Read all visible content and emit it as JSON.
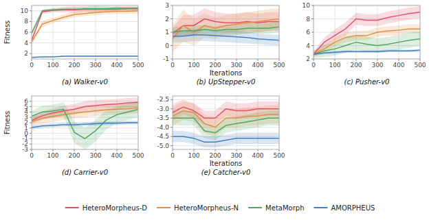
{
  "chart_data": [
    {
      "type": "line",
      "title": "(a) Walker-v0",
      "ylabel": "Fitness",
      "x": [
        0,
        50,
        100,
        150,
        200,
        250,
        300,
        350,
        400,
        450,
        500
      ],
      "xlim": [
        0,
        500
      ],
      "xticks": [
        0,
        100,
        200,
        300,
        400,
        500
      ],
      "ylim": [
        1,
        11
      ],
      "yticks": [
        2,
        4,
        6,
        8,
        10
      ],
      "grid": true,
      "legend": "bottom",
      "series": [
        {
          "name": "HeteroMorpheus-D",
          "color": "#e05070",
          "values": [
            4.5,
            9.8,
            10.1,
            10.2,
            10.2,
            10.3,
            10.3,
            10.3,
            10.3,
            10.4,
            10.4
          ],
          "std": [
            0.3,
            0.4,
            0.4,
            0.5,
            0.6,
            0.5,
            0.7,
            0.5,
            0.5,
            0.4,
            0.4
          ]
        },
        {
          "name": "HeteroMorpheus-N",
          "color": "#e09040",
          "values": [
            4.2,
            7.5,
            8.2,
            8.8,
            9.3,
            9.5,
            9.7,
            9.8,
            9.9,
            9.9,
            10.0
          ],
          "std": [
            0.4,
            0.6,
            0.5,
            0.5,
            0.5,
            0.5,
            0.5,
            0.5,
            0.5,
            0.5,
            0.5
          ]
        },
        {
          "name": "MetaMorph",
          "color": "#50a860",
          "values": [
            5.8,
            10.0,
            10.2,
            10.3,
            10.3,
            10.4,
            10.4,
            10.4,
            10.5,
            10.5,
            10.5
          ],
          "std": [
            0.5,
            0.3,
            0.3,
            0.3,
            0.3,
            0.3,
            0.3,
            0.3,
            0.3,
            0.3,
            0.3
          ]
        },
        {
          "name": "AMORPHEUS",
          "color": "#4080c0",
          "values": [
            1.3,
            1.4,
            1.4,
            1.5,
            1.5,
            1.5,
            1.5,
            1.5,
            1.5,
            1.5,
            1.5
          ],
          "std": [
            0.1,
            0.1,
            0.1,
            0.1,
            0.1,
            0.1,
            0.1,
            0.1,
            0.1,
            0.1,
            0.1
          ]
        }
      ]
    },
    {
      "type": "line",
      "title": "(b) UpStepper-v0",
      "xlabel": "Iterations",
      "x": [
        0,
        50,
        100,
        150,
        200,
        250,
        300,
        350,
        400,
        450,
        500
      ],
      "xlim": [
        0,
        500
      ],
      "xticks": [
        0,
        100,
        200,
        300,
        400,
        500
      ],
      "ylim": [
        -1,
        3
      ],
      "yticks": [
        -1,
        0,
        1,
        2,
        3
      ],
      "grid": true,
      "series": [
        {
          "name": "HeteroMorpheus-D",
          "color": "#e05070",
          "values": [
            0.9,
            1.5,
            1.5,
            2.0,
            1.8,
            1.7,
            1.7,
            1.8,
            1.7,
            1.8,
            1.8
          ],
          "std": [
            0.4,
            0.8,
            0.8,
            0.8,
            0.7,
            0.7,
            0.7,
            0.7,
            0.7,
            0.7,
            0.7
          ]
        },
        {
          "name": "HeteroMorpheus-N",
          "color": "#e09040",
          "values": [
            0.5,
            1.5,
            1.0,
            1.5,
            1.3,
            1.5,
            1.6,
            1.7,
            1.8,
            1.9,
            2.0
          ],
          "std": [
            1.0,
            1.2,
            1.0,
            0.9,
            0.8,
            0.8,
            0.8,
            0.8,
            0.8,
            0.8,
            0.8
          ]
        },
        {
          "name": "MetaMorph",
          "color": "#50a860",
          "values": [
            1.0,
            1.1,
            1.1,
            1.2,
            1.1,
            1.2,
            1.2,
            1.3,
            1.3,
            1.3,
            1.4
          ],
          "std": [
            0.35,
            0.35,
            0.35,
            0.35,
            0.35,
            0.35,
            0.35,
            0.4,
            0.4,
            0.4,
            0.4
          ]
        },
        {
          "name": "AMORPHEUS",
          "color": "#4080c0",
          "values": [
            0.7,
            0.7,
            0.8,
            0.8,
            0.75,
            0.7,
            0.65,
            0.6,
            0.5,
            0.45,
            0.4
          ],
          "std": [
            0.45,
            0.45,
            0.45,
            0.45,
            0.45,
            0.45,
            0.45,
            0.45,
            0.4,
            0.4,
            0.4
          ]
        }
      ]
    },
    {
      "type": "line",
      "title": "(c) Pusher-v0",
      "x": [
        0,
        50,
        100,
        150,
        200,
        250,
        300,
        350,
        400,
        450,
        500
      ],
      "xlim": [
        0,
        500
      ],
      "xticks": [
        0,
        100,
        200,
        300,
        400,
        500
      ],
      "ylim": [
        2,
        10
      ],
      "yticks": [
        2,
        4,
        6,
        8,
        10
      ],
      "grid": true,
      "series": [
        {
          "name": "HeteroMorpheus-D",
          "color": "#e05070",
          "values": [
            2.7,
            4.5,
            5.5,
            6.5,
            8.0,
            7.8,
            7.8,
            8.2,
            8.5,
            8.8,
            9.0
          ],
          "std": [
            0.4,
            0.7,
            0.9,
            1.0,
            0.9,
            0.9,
            0.9,
            0.9,
            0.9,
            0.9,
            0.9
          ]
        },
        {
          "name": "HeteroMorpheus-N",
          "color": "#e09040",
          "values": [
            2.7,
            3.5,
            4.5,
            5.2,
            5.5,
            5.5,
            6.0,
            6.2,
            6.3,
            6.5,
            6.5
          ],
          "std": [
            0.4,
            0.6,
            0.7,
            0.7,
            0.7,
            0.7,
            0.7,
            0.7,
            0.7,
            0.7,
            0.7
          ]
        },
        {
          "name": "MetaMorph",
          "color": "#50a860",
          "values": [
            2.7,
            3.2,
            3.5,
            4.0,
            4.5,
            4.2,
            4.0,
            4.2,
            4.5,
            4.8,
            5.0
          ],
          "std": [
            0.6,
            0.9,
            1.0,
            1.1,
            1.1,
            1.1,
            1.1,
            1.1,
            1.1,
            1.1,
            1.1
          ]
        },
        {
          "name": "AMORPHEUS",
          "color": "#4080c0",
          "values": [
            2.7,
            2.9,
            3.0,
            3.1,
            3.1,
            3.1,
            3.1,
            3.2,
            3.2,
            3.2,
            3.3
          ],
          "std": [
            0.2,
            0.2,
            0.2,
            0.2,
            0.2,
            0.2,
            0.2,
            0.2,
            0.2,
            0.2,
            0.2
          ]
        }
      ]
    },
    {
      "type": "line",
      "title": "(d) Carrier-v0",
      "ylabel": "Fitness",
      "x": [
        0,
        50,
        100,
        150,
        200,
        250,
        300,
        350,
        400,
        450,
        500
      ],
      "xlim": [
        0,
        500
      ],
      "xticks": [
        0,
        100,
        200,
        300,
        400,
        500
      ],
      "ylim": [
        -3,
        7
      ],
      "yticks": [
        -3,
        -2,
        -1,
        0,
        1,
        2,
        3,
        4,
        5,
        6
      ],
      "grid": true,
      "series": [
        {
          "name": "HeteroMorpheus-D",
          "color": "#e05070",
          "values": [
            2.4,
            3.3,
            3.8,
            4.2,
            4.5,
            5.0,
            5.2,
            5.4,
            5.5,
            5.7,
            5.8
          ],
          "std": [
            0.7,
            0.8,
            0.9,
            1.0,
            1.0,
            1.0,
            1.0,
            1.0,
            0.9,
            0.9,
            0.9
          ]
        },
        {
          "name": "HeteroMorpheus-N",
          "color": "#e09040",
          "values": [
            2.2,
            2.8,
            3.2,
            3.5,
            3.8,
            4.0,
            4.2,
            4.4,
            4.5,
            4.6,
            4.8
          ],
          "std": [
            0.8,
            1.0,
            1.0,
            1.0,
            1.0,
            1.0,
            1.0,
            1.0,
            1.0,
            1.0,
            1.0
          ]
        },
        {
          "name": "MetaMorph",
          "color": "#50a860",
          "values": [
            3.2,
            4.0,
            4.2,
            4.5,
            0.2,
            -1.0,
            0.5,
            2.5,
            3.5,
            4.0,
            4.5
          ],
          "std": [
            1.0,
            1.2,
            1.2,
            1.3,
            2.0,
            2.0,
            2.0,
            1.8,
            1.6,
            1.5,
            1.5
          ]
        },
        {
          "name": "AMORPHEUS",
          "color": "#4080c0",
          "values": [
            1.1,
            1.4,
            1.5,
            1.6,
            1.6,
            1.7,
            1.8,
            1.9,
            1.9,
            2.0,
            2.0
          ],
          "std": [
            0.35,
            0.35,
            0.35,
            0.35,
            0.35,
            0.35,
            0.35,
            0.35,
            0.35,
            0.35,
            0.35
          ]
        }
      ]
    },
    {
      "type": "line",
      "title": "(e) Catcher-v0",
      "xlabel": "Iterations",
      "x": [
        0,
        50,
        100,
        150,
        200,
        250,
        300,
        350,
        400,
        450,
        500
      ],
      "xlim": [
        0,
        500
      ],
      "xticks": [
        0,
        100,
        200,
        300,
        400,
        500
      ],
      "ylim": [
        -5.2,
        -2.3
      ],
      "yticks": [
        {
          "value": -5.0,
          "label": "-5.0"
        },
        -4.5,
        {
          "value": -4.0,
          "label": "-4.0"
        },
        -3.5,
        {
          "value": -3.0,
          "label": "-3.0"
        },
        -2.5
      ],
      "grid": true,
      "series": [
        {
          "name": "HeteroMorpheus-D",
          "color": "#e05070",
          "values": [
            -3.2,
            -2.9,
            -3.1,
            -3.5,
            -3.5,
            -3.0,
            -3.1,
            -3.1,
            -3.0,
            -3.0,
            -3.0
          ],
          "std": [
            0.45,
            0.4,
            0.4,
            0.4,
            0.4,
            0.4,
            0.4,
            0.4,
            0.4,
            0.4,
            0.4
          ]
        },
        {
          "name": "HeteroMorpheus-N",
          "color": "#e09040",
          "values": [
            -3.4,
            -3.1,
            -3.2,
            -3.8,
            -4.0,
            -3.5,
            -3.5,
            -3.4,
            -3.4,
            -3.3,
            -3.3
          ],
          "std": [
            0.5,
            0.5,
            0.5,
            0.5,
            0.5,
            0.5,
            0.5,
            0.5,
            0.5,
            0.5,
            0.5
          ]
        },
        {
          "name": "MetaMorph",
          "color": "#50a860",
          "values": [
            -3.5,
            -3.5,
            -3.5,
            -4.2,
            -4.3,
            -3.9,
            -3.8,
            -3.7,
            -3.6,
            -3.5,
            -3.5
          ],
          "std": [
            0.4,
            0.4,
            0.4,
            0.4,
            0.4,
            0.4,
            0.4,
            0.4,
            0.4,
            0.4,
            0.4
          ]
        },
        {
          "name": "AMORPHEUS",
          "color": "#4080c0",
          "values": [
            -4.5,
            -4.5,
            -4.6,
            -4.8,
            -4.8,
            -4.7,
            -4.6,
            -4.6,
            -4.6,
            -4.6,
            -4.6
          ],
          "std": [
            0.3,
            0.3,
            0.3,
            0.3,
            0.3,
            0.3,
            0.3,
            0.3,
            0.3,
            0.3,
            0.3
          ]
        }
      ]
    }
  ]
}
